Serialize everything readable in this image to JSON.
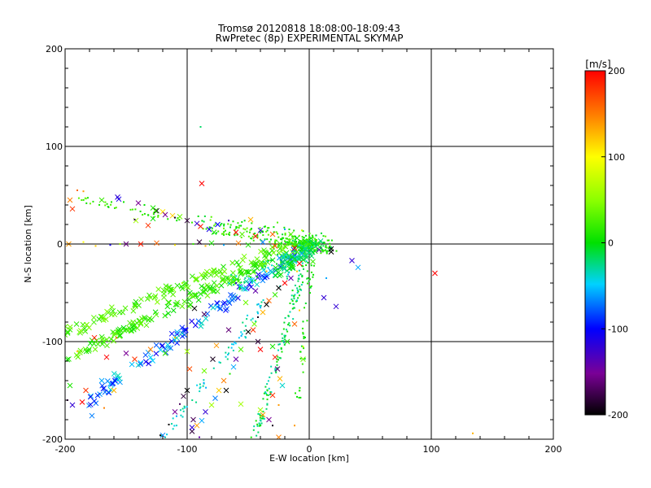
{
  "chart_data": {
    "type": "scatter",
    "title": "Tromsø 20120818 18:08:00-18:09:43",
    "subtitle": "RwPretec (8p) EXPERIMENTAL SKYMAP",
    "xlabel": "E-W location [km]",
    "ylabel": "N-S location [km]",
    "xlim": [
      -200,
      200
    ],
    "ylim": [
      -200,
      200
    ],
    "x_ticks": [
      "-200",
      "-100",
      "0",
      "100",
      "200"
    ],
    "y_ticks": [
      "-200",
      "-100",
      "0",
      "100",
      "200"
    ],
    "grid": true,
    "colorbar": {
      "label": "[m/s]",
      "range": [
        -200,
        200
      ],
      "ticks": [
        "200",
        "100",
        "0",
        "-100",
        "-200"
      ],
      "colormap": "rainbow: black at -200, purple, blue at -100, cyan, green at 0, yellow at 100, orange, red at 200"
    },
    "marker_legend": {
      "x": "cross markers",
      "dot": "small point markers"
    },
    "points": [
      {
        "x": -196,
        "y": 45,
        "v": 150,
        "m": "x"
      },
      {
        "x": -194,
        "y": 36,
        "v": 180,
        "m": "x"
      },
      {
        "x": -190,
        "y": 55,
        "v": 160,
        "m": "."
      },
      {
        "x": -185,
        "y": 54,
        "v": 140,
        "m": "."
      },
      {
        "x": -170,
        "y": 45,
        "v": 20,
        "m": "x"
      },
      {
        "x": -162,
        "y": 43,
        "v": 10,
        "m": "."
      },
      {
        "x": -157,
        "y": 48,
        "v": -120,
        "m": "x"
      },
      {
        "x": -156,
        "y": 46,
        "v": -110,
        "m": "x"
      },
      {
        "x": -152,
        "y": 43,
        "v": 5,
        "m": "."
      },
      {
        "x": -140,
        "y": 42,
        "v": -150,
        "m": "x"
      },
      {
        "x": -135,
        "y": 40,
        "v": 0,
        "m": "."
      },
      {
        "x": -128,
        "y": 37,
        "v": 10,
        "m": "x"
      },
      {
        "x": -125,
        "y": 34,
        "v": -200,
        "m": "x"
      },
      {
        "x": -120,
        "y": 33,
        "v": 110,
        "m": "x"
      },
      {
        "x": -118,
        "y": 30,
        "v": -150,
        "m": "x"
      },
      {
        "x": -112,
        "y": 29,
        "v": 120,
        "m": "x"
      },
      {
        "x": -110,
        "y": 27,
        "v": -190,
        "m": "."
      },
      {
        "x": -106,
        "y": 28,
        "v": 40,
        "m": "x"
      },
      {
        "x": -100,
        "y": 24,
        "v": -180,
        "m": "x"
      },
      {
        "x": -96,
        "y": 22,
        "v": 20,
        "m": "."
      },
      {
        "x": -92,
        "y": 21,
        "v": -120,
        "m": "x"
      },
      {
        "x": -89,
        "y": 18,
        "v": 190,
        "m": "x"
      },
      {
        "x": -88,
        "y": 62,
        "v": 200,
        "m": "x"
      },
      {
        "x": -89,
        "y": 120,
        "v": -20,
        "m": "."
      },
      {
        "x": -126,
        "y": 34,
        "v": 20,
        "m": "x"
      },
      {
        "x": -142,
        "y": 24,
        "v": 60,
        "m": "x"
      },
      {
        "x": -143,
        "y": 25,
        "v": -180,
        "m": "."
      },
      {
        "x": -132,
        "y": 19,
        "v": 180,
        "m": "x"
      },
      {
        "x": -128,
        "y": 26,
        "v": 0,
        "m": "x"
      },
      {
        "x": -82,
        "y": 15,
        "v": -110,
        "m": "x"
      },
      {
        "x": -78,
        "y": 12,
        "v": 10,
        "m": "x"
      },
      {
        "x": -75,
        "y": 20,
        "v": -100,
        "m": "x"
      },
      {
        "x": -70,
        "y": 16,
        "v": 40,
        "m": "."
      },
      {
        "x": -66,
        "y": 24,
        "v": -130,
        "m": "."
      },
      {
        "x": -60,
        "y": 12,
        "v": 200,
        "m": "x"
      },
      {
        "x": -55,
        "y": 10,
        "v": 30,
        "m": "x"
      },
      {
        "x": -48,
        "y": 25,
        "v": 130,
        "m": "x"
      },
      {
        "x": -44,
        "y": 8,
        "v": 190,
        "m": "x"
      },
      {
        "x": -40,
        "y": 14,
        "v": -120,
        "m": "x"
      },
      {
        "x": -36,
        "y": 18,
        "v": 10,
        "m": "."
      },
      {
        "x": -30,
        "y": 10,
        "v": 160,
        "m": "x"
      },
      {
        "x": -26,
        "y": 22,
        "v": 30,
        "m": "."
      },
      {
        "x": -20,
        "y": 15,
        "v": -60,
        "m": "."
      },
      {
        "x": -15,
        "y": 10,
        "v": 30,
        "m": "x"
      },
      {
        "x": -10,
        "y": 6,
        "v": 0,
        "m": "x"
      },
      {
        "x": -6,
        "y": 14,
        "v": 80,
        "m": "."
      },
      {
        "x": -4,
        "y": 3,
        "v": 10,
        "m": "x"
      },
      {
        "x": 0,
        "y": 0,
        "v": 20,
        "m": "x"
      },
      {
        "x": 2,
        "y": -3,
        "v": -40,
        "m": "."
      },
      {
        "x": 5,
        "y": 4,
        "v": 20,
        "m": "."
      },
      {
        "x": 8,
        "y": -6,
        "v": -140,
        "m": "x"
      },
      {
        "x": 10,
        "y": 2,
        "v": -20,
        "m": "."
      },
      {
        "x": 18,
        "y": -8,
        "v": -200,
        "m": "x"
      },
      {
        "x": 18,
        "y": -5,
        "v": -190,
        "m": "x"
      },
      {
        "x": 35,
        "y": -17,
        "v": -120,
        "m": "x"
      },
      {
        "x": 40,
        "y": -24,
        "v": -60,
        "m": "x"
      },
      {
        "x": 103,
        "y": -30,
        "v": 200,
        "m": "x"
      },
      {
        "x": 12,
        "y": -55,
        "v": -120,
        "m": "x"
      },
      {
        "x": 22,
        "y": -64,
        "v": -120,
        "m": "x"
      },
      {
        "x": 14,
        "y": -35,
        "v": -60,
        "m": "."
      },
      {
        "x": 134,
        "y": -194,
        "v": 130,
        "m": "."
      },
      {
        "x": -197,
        "y": 0,
        "v": 140,
        "m": "x"
      },
      {
        "x": -185,
        "y": 2,
        "v": 100,
        "m": "."
      },
      {
        "x": -175,
        "y": -2,
        "v": 120,
        "m": "."
      },
      {
        "x": -163,
        "y": -1,
        "v": -110,
        "m": "."
      },
      {
        "x": -155,
        "y": 0,
        "v": 60,
        "m": "."
      },
      {
        "x": -150,
        "y": 0,
        "v": -160,
        "m": "x"
      },
      {
        "x": -138,
        "y": 0,
        "v": 190,
        "m": "x"
      },
      {
        "x": -125,
        "y": 1,
        "v": 160,
        "m": "x"
      },
      {
        "x": -110,
        "y": -1,
        "v": 110,
        "m": "."
      },
      {
        "x": -95,
        "y": 0,
        "v": 20,
        "m": "."
      },
      {
        "x": -90,
        "y": 2,
        "v": -180,
        "m": "x"
      },
      {
        "x": -85,
        "y": -2,
        "v": 130,
        "m": "."
      },
      {
        "x": -80,
        "y": 1,
        "v": 10,
        "m": "x"
      },
      {
        "x": -70,
        "y": -1,
        "v": -60,
        "m": "."
      },
      {
        "x": -58,
        "y": 1,
        "v": 150,
        "m": "x"
      },
      {
        "x": -50,
        "y": -1,
        "v": 10,
        "m": "x"
      },
      {
        "x": -38,
        "y": 2,
        "v": -70,
        "m": "x"
      },
      {
        "x": -28,
        "y": -2,
        "v": 170,
        "m": "x"
      },
      {
        "x": -20,
        "y": 3,
        "v": 20,
        "m": "."
      },
      {
        "x": -12,
        "y": -4,
        "v": 200,
        "m": "x"
      },
      {
        "x": -6,
        "y": -10,
        "v": -60,
        "m": "x"
      },
      {
        "x": -2,
        "y": -14,
        "v": -20,
        "m": "x"
      },
      {
        "x": 3,
        "y": -18,
        "v": 20,
        "m": "x"
      },
      {
        "x": -8,
        "y": -20,
        "v": 200,
        "m": "x"
      },
      {
        "x": -10,
        "y": -28,
        "v": 120,
        "m": "."
      },
      {
        "x": -15,
        "y": -35,
        "v": -140,
        "m": "x"
      },
      {
        "x": -20,
        "y": -40,
        "v": 200,
        "m": "x"
      },
      {
        "x": -25,
        "y": -45,
        "v": -200,
        "m": "x"
      },
      {
        "x": -28,
        "y": -52,
        "v": 20,
        "m": "x"
      },
      {
        "x": -33,
        "y": -58,
        "v": 160,
        "m": "x"
      },
      {
        "x": -35,
        "y": -62,
        "v": -200,
        "m": "x"
      },
      {
        "x": -38,
        "y": -70,
        "v": 130,
        "m": "x"
      },
      {
        "x": -42,
        "y": -75,
        "v": -190,
        "m": "."
      },
      {
        "x": -45,
        "y": -82,
        "v": 40,
        "m": "x"
      },
      {
        "x": -46,
        "y": -88,
        "v": 180,
        "m": "x"
      },
      {
        "x": -50,
        "y": -90,
        "v": -200,
        "m": "x"
      },
      {
        "x": -52,
        "y": -96,
        "v": -40,
        "m": "."
      },
      {
        "x": -56,
        "y": -108,
        "v": 30,
        "m": "x"
      },
      {
        "x": -60,
        "y": -118,
        "v": -140,
        "m": "x"
      },
      {
        "x": -62,
        "y": -126,
        "v": -60,
        "m": "x"
      },
      {
        "x": -65,
        "y": -133,
        "v": 10,
        "m": "."
      },
      {
        "x": -70,
        "y": -140,
        "v": 150,
        "m": "x"
      },
      {
        "x": -74,
        "y": -150,
        "v": 120,
        "m": "x"
      },
      {
        "x": -77,
        "y": -158,
        "v": -70,
        "m": "x"
      },
      {
        "x": -80,
        "y": -165,
        "v": 60,
        "m": "x"
      },
      {
        "x": -85,
        "y": -172,
        "v": -120,
        "m": "x"
      },
      {
        "x": -88,
        "y": -181,
        "v": -60,
        "m": "x"
      },
      {
        "x": -92,
        "y": -186,
        "v": 140,
        "m": "x"
      },
      {
        "x": -96,
        "y": -192,
        "v": -180,
        "m": "x"
      },
      {
        "x": -100,
        "y": -150,
        "v": -200,
        "m": "x"
      },
      {
        "x": -103,
        "y": -156,
        "v": -180,
        "m": "x"
      },
      {
        "x": -106,
        "y": -164,
        "v": -170,
        "m": "."
      },
      {
        "x": -110,
        "y": -172,
        "v": -150,
        "m": "x"
      },
      {
        "x": -95,
        "y": -180,
        "v": -170,
        "m": "x"
      },
      {
        "x": -96,
        "y": -188,
        "v": -120,
        "m": "x"
      },
      {
        "x": -115,
        "y": -185,
        "v": -200,
        "m": "."
      },
      {
        "x": -120,
        "y": -196,
        "v": -70,
        "m": "x"
      },
      {
        "x": -120,
        "y": -203,
        "v": -50,
        "m": "x"
      },
      {
        "x": -33,
        "y": -180,
        "v": -150,
        "m": "x"
      },
      {
        "x": -38,
        "y": -175,
        "v": 140,
        "m": "x"
      },
      {
        "x": -40,
        "y": -170,
        "v": 60,
        "m": "x"
      },
      {
        "x": -25,
        "y": -165,
        "v": 140,
        "m": "."
      },
      {
        "x": -30,
        "y": -155,
        "v": 180,
        "m": "x"
      },
      {
        "x": -22,
        "y": -145,
        "v": -40,
        "m": "x"
      },
      {
        "x": -24,
        "y": -138,
        "v": 130,
        "m": "x"
      },
      {
        "x": -26,
        "y": -128,
        "v": -160,
        "m": "x"
      },
      {
        "x": -28,
        "y": -116,
        "v": 190,
        "m": "x"
      },
      {
        "x": -30,
        "y": -105,
        "v": 10,
        "m": "x"
      },
      {
        "x": -40,
        "y": -108,
        "v": 200,
        "m": "x"
      },
      {
        "x": -42,
        "y": -100,
        "v": -180,
        "m": "x"
      },
      {
        "x": -18,
        "y": -100,
        "v": 10,
        "m": "x"
      },
      {
        "x": -12,
        "y": -82,
        "v": 160,
        "m": "x"
      },
      {
        "x": -8,
        "y": -68,
        "v": 120,
        "m": "."
      },
      {
        "x": -5,
        "y": -105,
        "v": 80,
        "m": "."
      },
      {
        "x": -5,
        "y": -118,
        "v": 40,
        "m": "x"
      },
      {
        "x": -12,
        "y": -186,
        "v": 140,
        "m": "."
      },
      {
        "x": -25,
        "y": -198,
        "v": 150,
        "m": "x"
      },
      {
        "x": -30,
        "y": -186,
        "v": -190,
        "m": "."
      },
      {
        "x": -56,
        "y": -164,
        "v": 60,
        "m": "x"
      },
      {
        "x": -68,
        "y": -150,
        "v": -200,
        "m": "x"
      },
      {
        "x": -86,
        "y": -130,
        "v": 40,
        "m": "x"
      },
      {
        "x": -100,
        "y": -110,
        "v": 60,
        "m": "x"
      },
      {
        "x": -110,
        "y": -96,
        "v": 130,
        "m": "."
      },
      {
        "x": -130,
        "y": -108,
        "v": 150,
        "m": "x"
      },
      {
        "x": -143,
        "y": -118,
        "v": 180,
        "m": "x"
      },
      {
        "x": -150,
        "y": -112,
        "v": -150,
        "m": "x"
      },
      {
        "x": -170,
        "y": -140,
        "v": -60,
        "m": "x"
      },
      {
        "x": -183,
        "y": -150,
        "v": 180,
        "m": "x"
      },
      {
        "x": -186,
        "y": -162,
        "v": 200,
        "m": "x"
      },
      {
        "x": -196,
        "y": -145,
        "v": 10,
        "m": "x"
      },
      {
        "x": -198,
        "y": -160,
        "v": -170,
        "m": "."
      },
      {
        "x": -194,
        "y": -165,
        "v": -120,
        "m": "x"
      },
      {
        "x": -178,
        "y": -176,
        "v": -70,
        "m": "x"
      },
      {
        "x": -168,
        "y": -168,
        "v": 150,
        "m": "."
      },
      {
        "x": -160,
        "y": -150,
        "v": 130,
        "m": "x"
      },
      {
        "x": -190,
        "y": -110,
        "v": 120,
        "m": "."
      },
      {
        "x": -176,
        "y": -96,
        "v": 190,
        "m": "x"
      },
      {
        "x": -166,
        "y": -116,
        "v": 200,
        "m": "x"
      },
      {
        "x": -158,
        "y": -96,
        "v": 160,
        "m": "."
      },
      {
        "x": -140,
        "y": -124,
        "v": -40,
        "m": "x"
      },
      {
        "x": -118,
        "y": -112,
        "v": 20,
        "m": "x"
      },
      {
        "x": -98,
        "y": -128,
        "v": 170,
        "m": "x"
      },
      {
        "x": -79,
        "y": -118,
        "v": -190,
        "m": "x"
      },
      {
        "x": -66,
        "y": -88,
        "v": -160,
        "m": "x"
      },
      {
        "x": -76,
        "y": -104,
        "v": 140,
        "m": "x"
      },
      {
        "x": -86,
        "y": -72,
        "v": -170,
        "m": "x"
      },
      {
        "x": -94,
        "y": -66,
        "v": -200,
        "m": "x"
      },
      {
        "x": -104,
        "y": -40,
        "v": 60,
        "m": "."
      },
      {
        "x": -60,
        "y": -40,
        "v": -120,
        "m": "."
      },
      {
        "x": -52,
        "y": -60,
        "v": 40,
        "m": "x"
      },
      {
        "x": -44,
        "y": -48,
        "v": -140,
        "m": "x"
      },
      {
        "x": -35,
        "y": -28,
        "v": 130,
        "m": "."
      },
      {
        "x": -122,
        "y": -196,
        "v": -200,
        "m": "."
      },
      {
        "x": -90,
        "y": -198,
        "v": -140,
        "m": "."
      }
    ],
    "bands": [
      {
        "x0": -198,
        "y0": -118,
        "x1": -1,
        "y1": 3,
        "n": 170,
        "v": [
          0,
          40
        ],
        "spread": 5,
        "m": "x"
      },
      {
        "x0": -198,
        "y0": -90,
        "x1": -15,
        "y1": 2,
        "n": 110,
        "v": [
          10,
          50
        ],
        "spread": 5,
        "m": "x"
      },
      {
        "x0": -190,
        "y0": -168,
        "x1": -3,
        "y1": -3,
        "n": 130,
        "v": [
          -110,
          -30
        ],
        "spread": 5,
        "m": "x"
      },
      {
        "x0": -120,
        "y0": -200,
        "x1": -8,
        "y1": -10,
        "n": 80,
        "v": [
          -60,
          -20
        ],
        "spread": 4,
        "m": "."
      },
      {
        "x0": -45,
        "y0": -200,
        "x1": -2,
        "y1": -12,
        "n": 140,
        "v": [
          -40,
          10
        ],
        "spread": 3,
        "m": "."
      },
      {
        "x0": -10,
        "y0": -165,
        "x1": 2,
        "y1": -15,
        "n": 40,
        "v": [
          -10,
          20
        ],
        "spread": 3,
        "m": "."
      },
      {
        "x0": -85,
        "y0": 20,
        "x1": 15,
        "y1": 0,
        "n": 140,
        "v": [
          -10,
          40
        ],
        "spread": 9,
        "m": "."
      },
      {
        "x0": -190,
        "y0": 46,
        "x1": -105,
        "y1": 24,
        "n": 35,
        "v": [
          0,
          40
        ],
        "spread": 3,
        "m": "."
      },
      {
        "x0": -20,
        "y0": 5,
        "x1": 18,
        "y1": -5,
        "n": 110,
        "v": [
          -20,
          30
        ],
        "spread": 6,
        "m": "."
      },
      {
        "x0": -60,
        "y0": -40,
        "x1": 0,
        "y1": -5,
        "n": 60,
        "v": [
          -50,
          20
        ],
        "spread": 8,
        "m": "."
      },
      {
        "x0": -25,
        "y0": -30,
        "x1": 5,
        "y1": 0,
        "n": 60,
        "v": [
          -30,
          20
        ],
        "spread": 5,
        "m": "x"
      }
    ]
  }
}
